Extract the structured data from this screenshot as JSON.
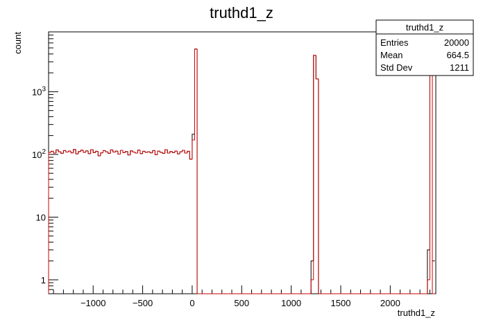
{
  "chart_data": {
    "type": "bar",
    "title": "truthd1_z",
    "xlabel": "truthd1_z",
    "ylabel": "count",
    "yscale": "log",
    "xlim": [
      -1450,
      2460
    ],
    "ylim": [
      0.6,
      9000
    ],
    "bin_width": 25,
    "x_ticks": [
      "−1000",
      "−500",
      "0",
      "500",
      "1000",
      "1500",
      "2000"
    ],
    "x_tick_values": [
      -1000,
      -500,
      0,
      500,
      1000,
      1500,
      2000
    ],
    "y_ticks": [
      {
        "value": 1,
        "label": "1"
      },
      {
        "value": 10,
        "label": "10"
      },
      {
        "value": 100,
        "base": "10",
        "exp": "2"
      },
      {
        "value": 1000,
        "base": "10",
        "exp": "3"
      }
    ],
    "series": [
      {
        "color": "#000000",
        "x": [
          -1450,
          -1425,
          -1400,
          -1375,
          -1350,
          -1325,
          -1300,
          -1275,
          -1250,
          -1225,
          -1200,
          -1175,
          -1150,
          -1125,
          -1100,
          -1075,
          -1050,
          -1025,
          -1000,
          -975,
          -950,
          -925,
          -900,
          -875,
          -850,
          -825,
          -800,
          -775,
          -750,
          -725,
          -700,
          -675,
          -650,
          -625,
          -600,
          -575,
          -550,
          -525,
          -500,
          -475,
          -450,
          -425,
          -400,
          -375,
          -350,
          -325,
          -300,
          -275,
          -250,
          -225,
          -200,
          -175,
          -150,
          -125,
          -100,
          -75,
          -50,
          -25,
          0,
          25,
          50,
          1200,
          1225,
          1250,
          2375,
          2400,
          2425
        ],
        "values": [
          108,
          112,
          105,
          118,
          110,
          104,
          115,
          109,
          113,
          106,
          120,
          102,
          111,
          117,
          108,
          114,
          103,
          119,
          107,
          112,
          95,
          106,
          115,
          110,
          104,
          118,
          109,
          113,
          101,
          116,
          107,
          111,
          98,
          114,
          109,
          105,
          117,
          103,
          112,
          108,
          110,
          106,
          115,
          99,
          113,
          108,
          104,
          119,
          105,
          111,
          107,
          113,
          102,
          110,
          116,
          105,
          112,
          84,
          210,
          4800,
          0,
          2,
          3800,
          1600,
          3,
          2100,
          2
        ]
      },
      {
        "color": "#cc0000",
        "x": [
          -1450,
          -1425,
          -1400,
          -1375,
          -1350,
          -1325,
          -1300,
          -1275,
          -1250,
          -1225,
          -1200,
          -1175,
          -1150,
          -1125,
          -1100,
          -1075,
          -1050,
          -1025,
          -1000,
          -975,
          -950,
          -925,
          -900,
          -875,
          -850,
          -825,
          -800,
          -775,
          -750,
          -725,
          -700,
          -675,
          -650,
          -625,
          -600,
          -575,
          -550,
          -525,
          -500,
          -475,
          -450,
          -425,
          -400,
          -375,
          -350,
          -325,
          -300,
          -275,
          -250,
          -225,
          -200,
          -175,
          -150,
          -125,
          -100,
          -75,
          -50,
          -25,
          0,
          25,
          50,
          1200,
          1225,
          1250,
          2375,
          2400,
          2425
        ],
        "values": [
          108,
          112,
          105,
          118,
          110,
          104,
          115,
          109,
          113,
          106,
          120,
          102,
          111,
          117,
          108,
          114,
          103,
          119,
          107,
          112,
          95,
          106,
          115,
          110,
          104,
          118,
          109,
          113,
          101,
          116,
          107,
          111,
          98,
          114,
          109,
          105,
          117,
          103,
          112,
          108,
          110,
          106,
          115,
          99,
          113,
          108,
          104,
          119,
          105,
          111,
          107,
          113,
          102,
          110,
          116,
          105,
          112,
          84,
          170,
          4800,
          0,
          1,
          3800,
          1600,
          1,
          2100,
          0
        ]
      }
    ],
    "stats_box": {
      "title": "truthd1_z",
      "rows": [
        {
          "label": "Entries",
          "value": "20000"
        },
        {
          "label": "Mean",
          "value": "664.5"
        },
        {
          "label": "Std Dev",
          "value": "1211"
        }
      ]
    },
    "grid": false,
    "legend": "top-right"
  }
}
